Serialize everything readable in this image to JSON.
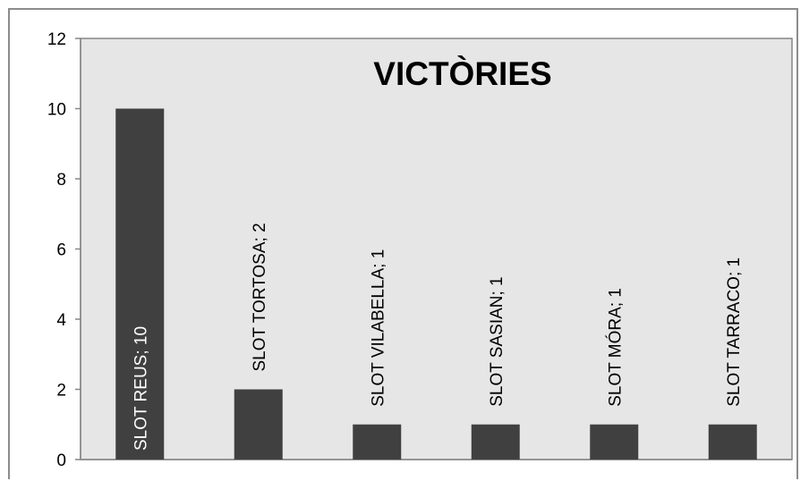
{
  "chart_data": {
    "type": "bar",
    "title": "VICTÒRIES",
    "categories": [
      "SLOT REUS",
      "SLOT TORTOSA",
      "SLOT VILABELLA",
      "SLOT SASIAN",
      "SLOT MÓRA",
      "SLOT TARRACO"
    ],
    "values": [
      10,
      2,
      1,
      1,
      1,
      1
    ],
    "data_labels": [
      "SLOT REUS; 10",
      "SLOT TORTOSA; 2",
      "SLOT VILABELLA; 1",
      "SLOT SASIAN; 1",
      "SLOT MÓRA; 1",
      "SLOT TARRACO; 1"
    ],
    "ylim": [
      0,
      12
    ],
    "yticks": [
      0,
      2,
      4,
      6,
      8,
      10,
      12
    ],
    "xlabel": "",
    "ylabel": "",
    "grid": false,
    "legend": "none",
    "colors": {
      "bar": "#404040",
      "plot_background": "#e6e6e6",
      "axis": "#868686",
      "text": "#000000",
      "inside_label": "#ffffff"
    }
  }
}
